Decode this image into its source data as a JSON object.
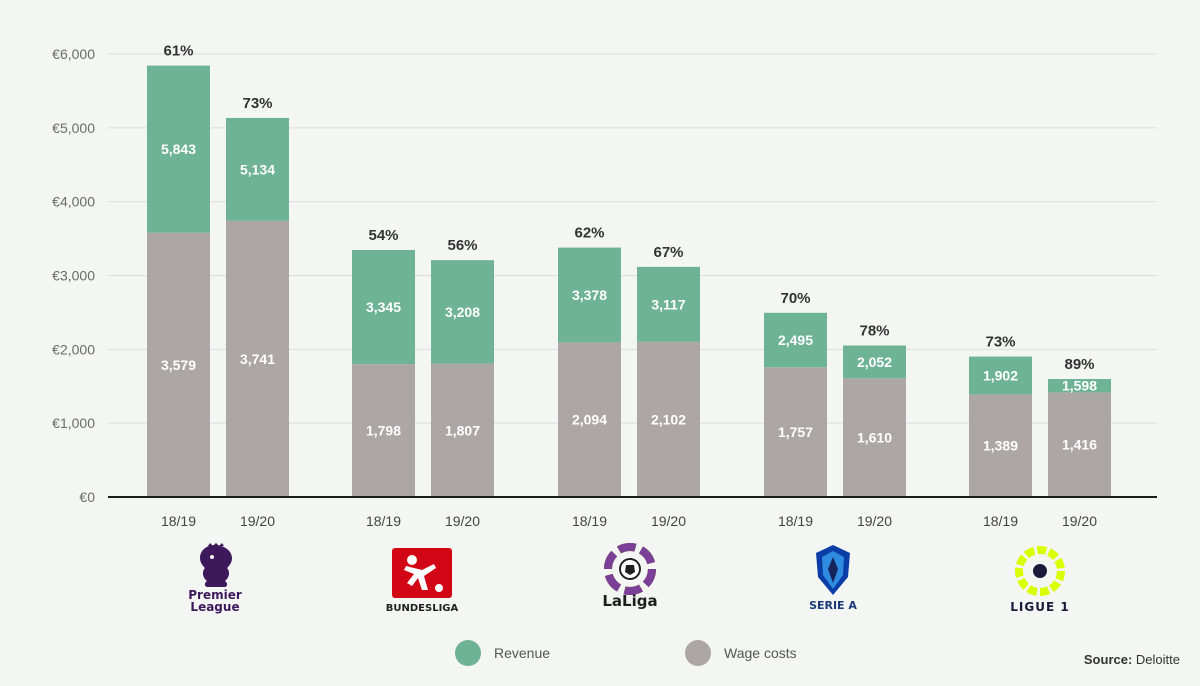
{
  "chart_data": {
    "type": "bar",
    "stacked": true,
    "currency": "€",
    "ylim": [
      0,
      6000
    ],
    "yticks": [
      "€0",
      "€1,000",
      "€2,000",
      "€3,000",
      "€4,000",
      "€5,000",
      "€6,000"
    ],
    "ytick_values": [
      0,
      1000,
      2000,
      3000,
      4000,
      5000,
      6000
    ],
    "grid": true,
    "legend_position": "bottom-center",
    "groups": [
      {
        "league": "Premier League",
        "logo_text": "Premier League",
        "bars": [
          {
            "season": "18/19",
            "revenue": 5843,
            "revenue_label": "5,843",
            "wages": 3579,
            "wages_label": "3,579",
            "ratio": "61%"
          },
          {
            "season": "19/20",
            "revenue": 5134,
            "revenue_label": "5,134",
            "wages": 3741,
            "wages_label": "3,741",
            "ratio": "73%"
          }
        ]
      },
      {
        "league": "Bundesliga",
        "logo_text": "BUNDESLIGA",
        "bars": [
          {
            "season": "18/19",
            "revenue": 3345,
            "revenue_label": "3,345",
            "wages": 1798,
            "wages_label": "1,798",
            "ratio": "54%"
          },
          {
            "season": "19/20",
            "revenue": 3208,
            "revenue_label": "3,208",
            "wages": 1807,
            "wages_label": "1,807",
            "ratio": "56%"
          }
        ]
      },
      {
        "league": "LaLiga",
        "logo_text": "LaLiga",
        "bars": [
          {
            "season": "18/19",
            "revenue": 3378,
            "revenue_label": "3,378",
            "wages": 2094,
            "wages_label": "2,094",
            "ratio": "62%"
          },
          {
            "season": "19/20",
            "revenue": 3117,
            "revenue_label": "3,117",
            "wages": 2102,
            "wages_label": "2,102",
            "ratio": "67%"
          }
        ]
      },
      {
        "league": "Serie A",
        "logo_text": "SERIE A",
        "bars": [
          {
            "season": "18/19",
            "revenue": 2495,
            "revenue_label": "2,495",
            "wages": 1757,
            "wages_label": "1,757",
            "ratio": "70%"
          },
          {
            "season": "19/20",
            "revenue": 2052,
            "revenue_label": "2,052",
            "wages": 1610,
            "wages_label": "1,610",
            "ratio": "78%"
          }
        ]
      },
      {
        "league": "Ligue 1",
        "logo_text": "LIGUE 1",
        "bars": [
          {
            "season": "18/19",
            "revenue": 1902,
            "revenue_label": "1,902",
            "wages": 1389,
            "wages_label": "1,389",
            "ratio": "73%"
          },
          {
            "season": "19/20",
            "revenue": 1598,
            "revenue_label": "1,598",
            "wages": 1416,
            "wages_label": "1,416",
            "ratio": "89%"
          }
        ]
      }
    ],
    "series": [
      {
        "name": "Revenue",
        "color": "#6fb396"
      },
      {
        "name": "Wage costs",
        "color": "#aca6a5"
      }
    ]
  },
  "legend": {
    "revenue_label": "Revenue",
    "wages_label": "Wage costs"
  },
  "source": {
    "prefix": "Source:",
    "name": "Deloitte"
  },
  "colors": {
    "revenue": "#6fb396",
    "wages": "#aca6a5",
    "background": "#f4f6f4",
    "grid": "#dcdcdc"
  },
  "logos": {
    "premier_league": "lion-crest-icon",
    "bundesliga": "footballer-icon",
    "laliga": "football-icon",
    "serie_a": "shield-icon",
    "ligue_1": "ring-icon"
  }
}
